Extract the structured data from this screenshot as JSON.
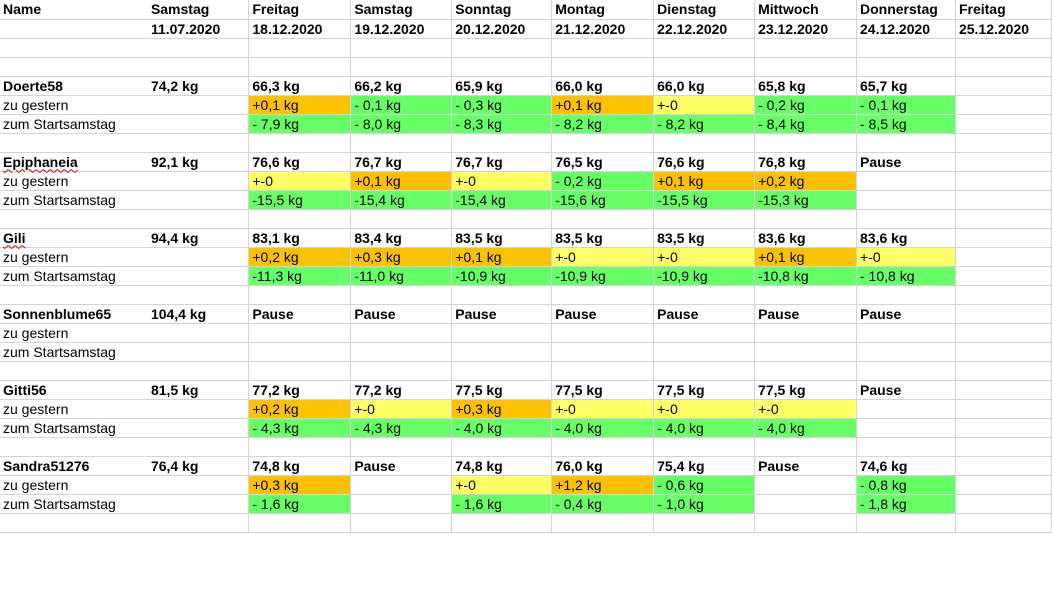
{
  "header_row1": [
    "Name",
    "Samstag",
    "Freitag",
    "Samstag",
    "Sonntag",
    "Montag",
    "Dienstag",
    "Mittwoch",
    "Donnerstag",
    "Freitag"
  ],
  "header_row2": [
    "",
    "11.07.2020",
    "18.12.2020",
    "19.12.2020",
    "20.12.2020",
    "21.12.2020",
    "22.12.2020",
    "23.12.2020",
    "24.12.2020",
    "25.12.2020"
  ],
  "colors": {
    "green": "#66ff66",
    "orange": "#ffc000",
    "yellow": "#ffff66",
    "grid": "#d4d4d4"
  },
  "persons": [
    {
      "name": "Doerte58",
      "weights": [
        "74,2 kg",
        "66,3 kg",
        "66,2 kg",
        "65,9 kg",
        "66,0 kg",
        "66,0 kg",
        "65,8 kg",
        "65,7 kg",
        ""
      ],
      "daily_label": "zu gestern",
      "daily": [
        {
          "v": "",
          "c": ""
        },
        {
          "v": "+0,1 kg",
          "c": "orange"
        },
        {
          "v": "- 0,1 kg",
          "c": "green"
        },
        {
          "v": "- 0,3 kg",
          "c": "green"
        },
        {
          "v": "+0,1 kg",
          "c": "orange"
        },
        {
          "v": "+-0",
          "c": "yellow"
        },
        {
          "v": "- 0,2 kg",
          "c": "green"
        },
        {
          "v": "- 0,1 kg",
          "c": "green"
        },
        {
          "v": "",
          "c": ""
        }
      ],
      "total_label": "zum Startsamstag",
      "total": [
        {
          "v": "",
          "c": ""
        },
        {
          "v": "- 7,9 kg",
          "c": "green"
        },
        {
          "v": "- 8,0 kg",
          "c": "green"
        },
        {
          "v": "- 8,3 kg",
          "c": "green"
        },
        {
          "v": "- 8,2 kg",
          "c": "green"
        },
        {
          "v": "- 8,2 kg",
          "c": "green"
        },
        {
          "v": "- 8,4 kg",
          "c": "green"
        },
        {
          "v": "- 8,5 kg",
          "c": "green"
        },
        {
          "v": "",
          "c": ""
        }
      ]
    },
    {
      "name": "Epiphaneia",
      "spell": true,
      "weights": [
        "92,1 kg",
        "76,6 kg",
        "76,7 kg",
        "76,7 kg",
        "76,5 kg",
        "76,6 kg",
        "76,8 kg",
        "Pause",
        ""
      ],
      "daily_label": "zu gestern",
      "daily": [
        {
          "v": "",
          "c": ""
        },
        {
          "v": "+-0",
          "c": "yellow"
        },
        {
          "v": "+0,1 kg",
          "c": "orange"
        },
        {
          "v": "+-0",
          "c": "yellow"
        },
        {
          "v": "- 0,2 kg",
          "c": "green"
        },
        {
          "v": "+0,1 kg",
          "c": "orange"
        },
        {
          "v": "+0,2 kg",
          "c": "orange"
        },
        {
          "v": "",
          "c": ""
        },
        {
          "v": "",
          "c": ""
        }
      ],
      "total_label": "zum Startsamstag",
      "total": [
        {
          "v": "",
          "c": ""
        },
        {
          "v": "-15,5 kg",
          "c": "green"
        },
        {
          "v": "-15,4 kg",
          "c": "green"
        },
        {
          "v": "-15,4 kg",
          "c": "green"
        },
        {
          "v": "-15,6 kg",
          "c": "green"
        },
        {
          "v": "-15,5 kg",
          "c": "green"
        },
        {
          "v": "-15,3 kg",
          "c": "green"
        },
        {
          "v": "",
          "c": ""
        },
        {
          "v": "",
          "c": ""
        }
      ]
    },
    {
      "name": "Gili",
      "spell": true,
      "weights": [
        "94,4 kg",
        "83,1 kg",
        "83,4 kg",
        "83,5 kg",
        "83,5 kg",
        "83,5 kg",
        "83,6 kg",
        "83,6 kg",
        ""
      ],
      "daily_label": "zu gestern",
      "daily": [
        {
          "v": "",
          "c": ""
        },
        {
          "v": "+0,2 kg",
          "c": "orange"
        },
        {
          "v": "+0,3 kg",
          "c": "orange"
        },
        {
          "v": "+0,1 kg",
          "c": "orange"
        },
        {
          "v": "+-0",
          "c": "yellow"
        },
        {
          "v": "+-0",
          "c": "yellow"
        },
        {
          "v": "+0,1 kg",
          "c": "orange"
        },
        {
          "v": "+-0",
          "c": "yellow"
        },
        {
          "v": "",
          "c": ""
        }
      ],
      "total_label": "zum Startsamstag",
      "total": [
        {
          "v": "",
          "c": ""
        },
        {
          "v": "-11,3 kg",
          "c": "green"
        },
        {
          "v": "-11,0 kg",
          "c": "green"
        },
        {
          "v": "-10,9 kg",
          "c": "green"
        },
        {
          "v": "-10,9 kg",
          "c": "green"
        },
        {
          "v": "-10,9 kg",
          "c": "green"
        },
        {
          "v": "-10,8 kg",
          "c": "green"
        },
        {
          "v": "- 10,8 kg",
          "c": "green"
        },
        {
          "v": "",
          "c": ""
        }
      ]
    },
    {
      "name": "Sonnenblume65",
      "weights": [
        "104,4 kg",
        "Pause",
        "Pause",
        "Pause",
        "Pause",
        "Pause",
        "Pause",
        "Pause",
        ""
      ],
      "daily_label": "zu gestern",
      "daily": [
        {
          "v": "",
          "c": ""
        },
        {
          "v": "",
          "c": ""
        },
        {
          "v": "",
          "c": ""
        },
        {
          "v": "",
          "c": ""
        },
        {
          "v": "",
          "c": ""
        },
        {
          "v": "",
          "c": ""
        },
        {
          "v": "",
          "c": ""
        },
        {
          "v": "",
          "c": ""
        },
        {
          "v": "",
          "c": ""
        }
      ],
      "total_label": "zum Startsamstag",
      "total": [
        {
          "v": "",
          "c": ""
        },
        {
          "v": "",
          "c": ""
        },
        {
          "v": "",
          "c": ""
        },
        {
          "v": "",
          "c": ""
        },
        {
          "v": "",
          "c": ""
        },
        {
          "v": "",
          "c": ""
        },
        {
          "v": "",
          "c": ""
        },
        {
          "v": "",
          "c": ""
        },
        {
          "v": "",
          "c": ""
        }
      ]
    },
    {
      "name": "Gitti56",
      "weights": [
        "81,5 kg",
        "77,2 kg",
        "77,2 kg",
        "77,5 kg",
        "77,5 kg",
        "77,5 kg",
        "77,5 kg",
        "Pause",
        ""
      ],
      "daily_label": "zu gestern",
      "daily": [
        {
          "v": "",
          "c": ""
        },
        {
          "v": "+0,2 kg",
          "c": "orange"
        },
        {
          "v": "+-0",
          "c": "yellow"
        },
        {
          "v": "+0,3 kg",
          "c": "orange"
        },
        {
          "v": "+-0",
          "c": "yellow"
        },
        {
          "v": "+-0",
          "c": "yellow"
        },
        {
          "v": "+-0",
          "c": "yellow"
        },
        {
          "v": "",
          "c": ""
        },
        {
          "v": "",
          "c": ""
        }
      ],
      "total_label": "zum Startsamstag",
      "total": [
        {
          "v": "",
          "c": ""
        },
        {
          "v": "- 4,3 kg",
          "c": "green"
        },
        {
          "v": "- 4,3 kg",
          "c": "green"
        },
        {
          "v": "- 4,0 kg",
          "c": "green"
        },
        {
          "v": "- 4,0 kg",
          "c": "green"
        },
        {
          "v": "- 4,0 kg",
          "c": "green"
        },
        {
          "v": "- 4,0 kg",
          "c": "green"
        },
        {
          "v": "",
          "c": ""
        },
        {
          "v": "",
          "c": ""
        }
      ]
    },
    {
      "name": "Sandra51276",
      "weights": [
        "76,4 kg",
        "74,8 kg",
        "Pause",
        "74,8 kg",
        "76,0 kg",
        "75,4 kg",
        "Pause",
        "74,6 kg",
        ""
      ],
      "daily_label": "zu gestern",
      "daily": [
        {
          "v": "",
          "c": ""
        },
        {
          "v": "+0,3 kg",
          "c": "orange"
        },
        {
          "v": "",
          "c": ""
        },
        {
          "v": "+-0",
          "c": "yellow"
        },
        {
          "v": "+1,2 kg",
          "c": "orange"
        },
        {
          "v": "- 0,6 kg",
          "c": "green"
        },
        {
          "v": "",
          "c": ""
        },
        {
          "v": "- 0,8 kg",
          "c": "green"
        },
        {
          "v": "",
          "c": ""
        }
      ],
      "total_label": "zum Startsamstag",
      "total": [
        {
          "v": "",
          "c": ""
        },
        {
          "v": "- 1,6 kg",
          "c": "green"
        },
        {
          "v": "",
          "c": ""
        },
        {
          "v": "- 1,6 kg",
          "c": "green"
        },
        {
          "v": "- 0,4 kg",
          "c": "green"
        },
        {
          "v": "- 1,0 kg",
          "c": "green"
        },
        {
          "v": "",
          "c": ""
        },
        {
          "v": "- 1,8 kg",
          "c": "green"
        },
        {
          "v": "",
          "c": ""
        }
      ]
    }
  ]
}
